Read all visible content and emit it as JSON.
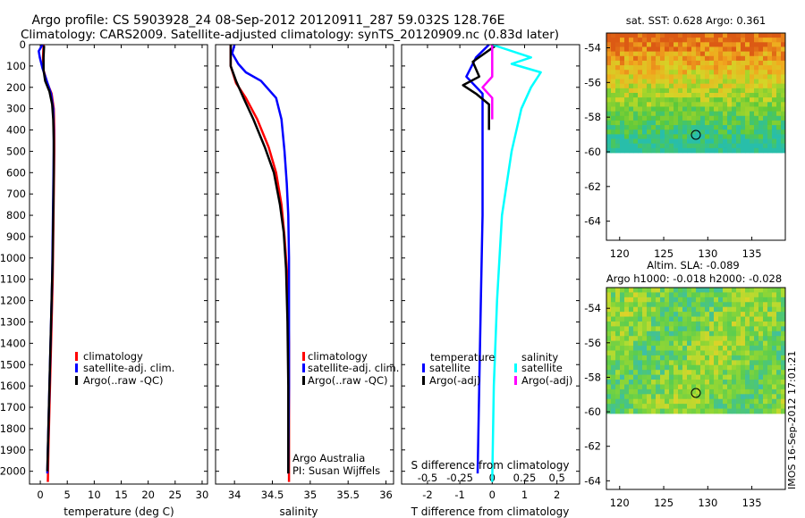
{
  "title_line1": "Argo profile: CS 5903928_24 08-Sep-2012 20120911_287 59.032S 128.76E",
  "title_line2": "Climatology: CARS2009. Satellite-adjusted climatology: synTS_20120909.nc (0.83d later)",
  "side_stamp": "IMOS 16-Sep-2012 17:01:21",
  "colors": {
    "climatology": "#ff0000",
    "satellite": "#0000ff",
    "argo": "#000000",
    "salinity_satellite": "#00ffff",
    "salinity_argo": "#ff00ff"
  },
  "chart_data": [
    {
      "type": "line",
      "id": "temperature",
      "xlabel": "temperature (deg C)",
      "ylabel": "",
      "xlim": [
        -2,
        31
      ],
      "ylim": [
        2060,
        0
      ],
      "xticks": [
        "0",
        "5",
        "10",
        "15",
        "20",
        "25",
        "30"
      ],
      "yticks": [
        "0",
        "100",
        "200",
        "300",
        "400",
        "500",
        "600",
        "700",
        "800",
        "900",
        "1000",
        "1100",
        "1200",
        "1300",
        "1400",
        "1500",
        "1600",
        "1700",
        "1800",
        "1900",
        "2000"
      ],
      "legend": [
        "climatology",
        "satellite-adj. clim.",
        "Argo(..raw -QC)"
      ],
      "series": [
        {
          "name": "climatology",
          "color": "#ff0000",
          "points": [
            [
              0.6,
              0
            ],
            [
              0.5,
              60
            ],
            [
              0.6,
              120
            ],
            [
              1.3,
              180
            ],
            [
              2.1,
              230
            ],
            [
              2.5,
              300
            ],
            [
              2.6,
              400
            ],
            [
              2.6,
              500
            ],
            [
              2.5,
              700
            ],
            [
              2.4,
              900
            ],
            [
              2.3,
              1100
            ],
            [
              2.1,
              1300
            ],
            [
              1.9,
              1500
            ],
            [
              1.7,
              1700
            ],
            [
              1.5,
              1900
            ],
            [
              1.4,
              2050
            ]
          ]
        },
        {
          "name": "satellite-adj. clim.",
          "color": "#0000ff",
          "points": [
            [
              0.4,
              0
            ],
            [
              -0.3,
              30
            ],
            [
              -0.1,
              60
            ],
            [
              0.4,
              110
            ],
            [
              1.2,
              170
            ],
            [
              2.0,
              230
            ],
            [
              2.4,
              300
            ],
            [
              2.5,
              400
            ],
            [
              2.5,
              500
            ],
            [
              2.4,
              700
            ],
            [
              2.3,
              900
            ],
            [
              2.2,
              1100
            ],
            [
              2.0,
              1300
            ],
            [
              1.8,
              1500
            ],
            [
              1.6,
              1700
            ],
            [
              1.4,
              1900
            ],
            [
              1.3,
              2010
            ]
          ]
        },
        {
          "name": "Argo(..raw -QC)",
          "color": "#000000",
          "points": [
            [
              0.7,
              5
            ],
            [
              0.6,
              60
            ],
            [
              0.6,
              120
            ],
            [
              0.9,
              170
            ],
            [
              1.7,
              220
            ],
            [
              2.2,
              280
            ],
            [
              2.4,
              350
            ],
            [
              2.5,
              450
            ],
            [
              2.5,
              600
            ],
            [
              2.4,
              800
            ],
            [
              2.3,
              1000
            ],
            [
              2.1,
              1200
            ],
            [
              1.9,
              1400
            ],
            [
              1.7,
              1600
            ],
            [
              1.5,
              1800
            ],
            [
              1.3,
              2000
            ]
          ]
        }
      ]
    },
    {
      "type": "line",
      "id": "salinity",
      "xlabel": "salinity",
      "xlim": [
        33.75,
        36.1
      ],
      "ylim": [
        2060,
        0
      ],
      "xticks": [
        "34",
        "34.5",
        "35",
        "35.5",
        "36"
      ],
      "legend": [
        "climatology",
        "satellite-adj. clim.",
        "Argo(..raw -QC)"
      ],
      "annotation": [
        "Argo Australia",
        "PI: Susan Wijffels"
      ],
      "series": [
        {
          "name": "climatology",
          "color": "#ff0000",
          "points": [
            [
              33.95,
              0
            ],
            [
              33.95,
              100
            ],
            [
              34.02,
              180
            ],
            [
              34.15,
              250
            ],
            [
              34.3,
              350
            ],
            [
              34.45,
              480
            ],
            [
              34.55,
              600
            ],
            [
              34.62,
              750
            ],
            [
              34.66,
              900
            ],
            [
              34.7,
              1100
            ],
            [
              34.72,
              1400
            ],
            [
              34.72,
              1700
            ],
            [
              34.72,
              2050
            ]
          ]
        },
        {
          "name": "satellite-adj. clim.",
          "color": "#0000ff",
          "points": [
            [
              34.0,
              0
            ],
            [
              33.97,
              40
            ],
            [
              34.05,
              90
            ],
            [
              34.15,
              130
            ],
            [
              34.35,
              170
            ],
            [
              34.55,
              250
            ],
            [
              34.62,
              350
            ],
            [
              34.66,
              500
            ],
            [
              34.69,
              650
            ],
            [
              34.71,
              800
            ],
            [
              34.72,
              1000
            ],
            [
              34.72,
              1300
            ],
            [
              34.72,
              1600
            ],
            [
              34.71,
              2010
            ]
          ]
        },
        {
          "name": "Argo(..raw -QC)",
          "color": "#000000",
          "points": [
            [
              33.95,
              0
            ],
            [
              33.95,
              100
            ],
            [
              34.02,
              170
            ],
            [
              34.12,
              250
            ],
            [
              34.25,
              350
            ],
            [
              34.4,
              480
            ],
            [
              34.52,
              600
            ],
            [
              34.6,
              750
            ],
            [
              34.65,
              880
            ],
            [
              34.68,
              1050
            ],
            [
              34.7,
              1300
            ],
            [
              34.71,
              1600
            ],
            [
              34.71,
              2010
            ]
          ]
        }
      ]
    },
    {
      "type": "line",
      "id": "difference",
      "xlabel": "T difference from climatology",
      "xlabel_top": "S difference from climatology",
      "xlim": [
        -2.8,
        2.7
      ],
      "ylim": [
        2060,
        0
      ],
      "xticks": [
        "-2",
        "-1",
        "0",
        "1",
        "2"
      ],
      "xticks_top": [
        "-0.5",
        "-0.25",
        "0",
        "0.25",
        "0.5"
      ],
      "legend_temperature_title": "temperature",
      "legend_salinity_title": "salinity",
      "legend_temperature": [
        "satellite",
        "Argo(-adj)"
      ],
      "legend_salinity": [
        "satellite",
        "Argo(-adj)"
      ],
      "series": [
        {
          "name": "temperature satellite",
          "color": "#0000ff",
          "points": [
            [
              -0.1,
              0
            ],
            [
              -0.5,
              60
            ],
            [
              -0.8,
              150
            ],
            [
              -0.3,
              230
            ],
            [
              -0.3,
              400
            ],
            [
              -0.3,
              800
            ],
            [
              -0.35,
              1200
            ],
            [
              -0.4,
              1600
            ],
            [
              -0.45,
              2010
            ]
          ]
        },
        {
          "name": "temperature Argo(-adj)",
          "color": "#000000",
          "points": [
            [
              0.1,
              5
            ],
            [
              -0.6,
              80
            ],
            [
              -0.4,
              150
            ],
            [
              -0.9,
              190
            ],
            [
              -0.5,
              230
            ],
            [
              -0.1,
              280
            ],
            [
              -0.1,
              400
            ]
          ]
        },
        {
          "name": "salinity satellite",
          "color": "#00ffff",
          "points": [
            [
              0.0,
              0
            ],
            [
              1.2,
              60
            ],
            [
              0.6,
              90
            ],
            [
              1.5,
              130
            ],
            [
              1.2,
              200
            ],
            [
              0.9,
              300
            ],
            [
              0.6,
              500
            ],
            [
              0.3,
              800
            ],
            [
              0.15,
              1200
            ],
            [
              0.05,
              1600
            ],
            [
              0.0,
              2050
            ]
          ]
        },
        {
          "name": "salinity Argo(-adj)",
          "color": "#ff00ff",
          "points": [
            [
              0.0,
              0
            ],
            [
              0.0,
              150
            ],
            [
              -0.3,
              200
            ],
            [
              0.0,
              250
            ],
            [
              0.0,
              350
            ]
          ]
        }
      ]
    }
  ],
  "sst_map": {
    "title": "sat. SST: 0.628 Argo: 0.361",
    "xticks": [
      "120",
      "125",
      "130",
      "135"
    ],
    "yticks": [
      "-54",
      "-56",
      "-58",
      "-60",
      "-62",
      "-64"
    ]
  },
  "sla_map": {
    "title_line1": "Altim. SLA: -0.089",
    "title_line2": "Argo h1000: -0.018 h2000: -0.028",
    "xticks": [
      "120",
      "125",
      "130",
      "135"
    ],
    "yticks": [
      "-54",
      "-56",
      "-58",
      "-60",
      "-62",
      "-64"
    ]
  }
}
